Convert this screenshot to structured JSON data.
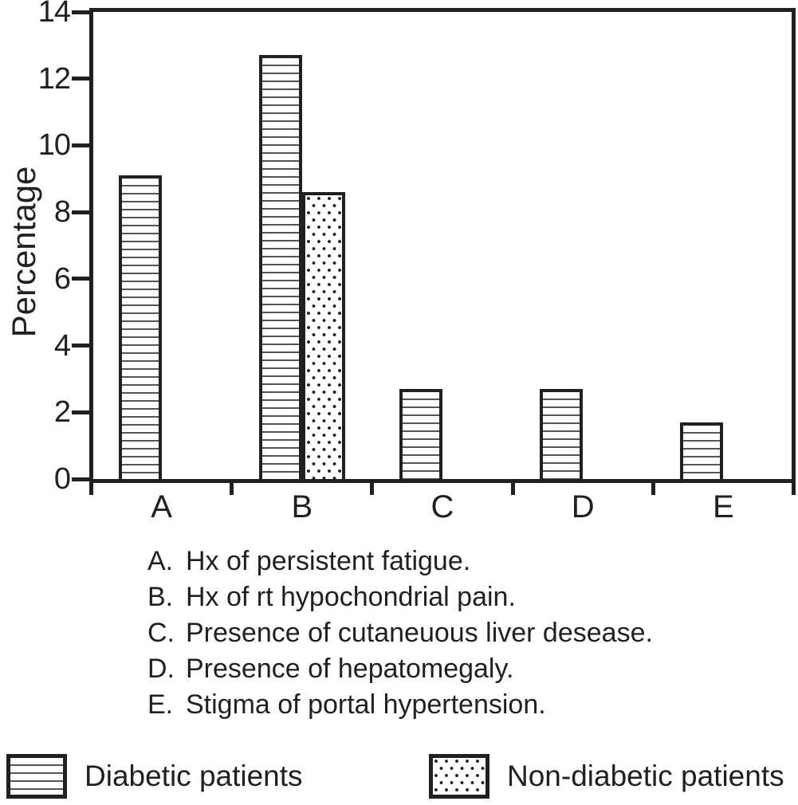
{
  "chart_data": {
    "type": "bar",
    "title": "",
    "xlabel": "",
    "ylabel": "Percentage",
    "ylim": [
      0,
      14
    ],
    "yticks": [
      0,
      2,
      4,
      6,
      8,
      10,
      12,
      14
    ],
    "grid": false,
    "legend_position": "bottom",
    "categories": [
      "A",
      "B",
      "C",
      "D",
      "E"
    ],
    "series": [
      {
        "name": "Diabetic patients",
        "pattern": "hlines",
        "values": [
          9.1,
          12.7,
          2.7,
          2.7,
          1.7
        ]
      },
      {
        "name": "Non-diabetic patients",
        "pattern": "dots",
        "values": [
          null,
          8.6,
          null,
          null,
          null
        ]
      }
    ]
  },
  "notes": [
    {
      "key": "A.",
      "text": "Hx of persistent fatigue."
    },
    {
      "key": "B.",
      "text": "Hx of rt hypochondrial pain."
    },
    {
      "key": "C.",
      "text": "Presence of cutaneuous liver desease."
    },
    {
      "key": "D.",
      "text": "Presence of hepatomegaly."
    },
    {
      "key": "E.",
      "text": "Stigma of portal hypertension."
    }
  ],
  "legend": [
    {
      "label": "Diabetic patients",
      "pattern": "hlines"
    },
    {
      "label": "Non-diabetic patients",
      "pattern": "dots"
    }
  ],
  "colors": {
    "ink": "#231f20",
    "background": "#ffffff"
  }
}
